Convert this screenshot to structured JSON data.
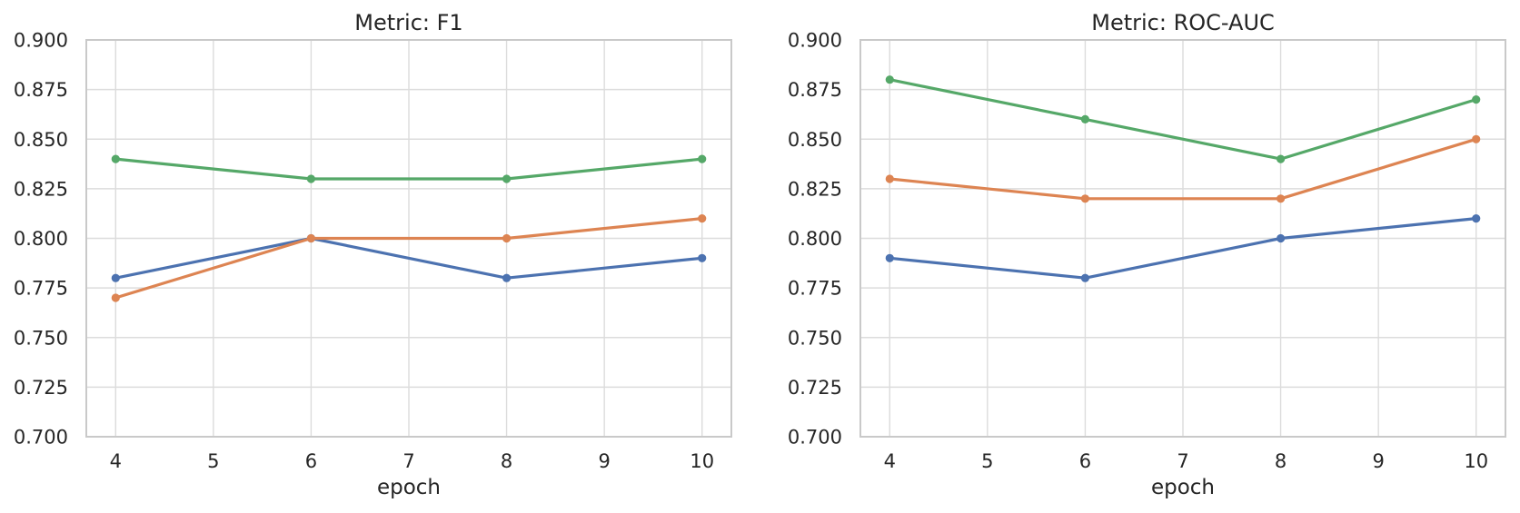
{
  "figure": {
    "background": "#ffffff",
    "text_color": "#262626",
    "grid_color": "#dcdcdc",
    "spine_color": "#c9c9c9",
    "palette": {
      "blue": "#4C72B0",
      "orange": "#DD8452",
      "green": "#55A868"
    }
  },
  "chart_data": [
    {
      "type": "line",
      "title": "Metric: F1",
      "xlabel": "epoch",
      "ylabel": "",
      "x": [
        4,
        6,
        8,
        10
      ],
      "xlim": [
        3.7,
        10.3
      ],
      "ylim": [
        0.7,
        0.9
      ],
      "grid": true,
      "legend_position": "none",
      "xticks": {
        "values": [
          4,
          5,
          6,
          7,
          8,
          9,
          10
        ],
        "labels": [
          "4",
          "5",
          "6",
          "7",
          "8",
          "9",
          "10"
        ]
      },
      "yticks": {
        "values": [
          0.7,
          0.725,
          0.75,
          0.775,
          0.8,
          0.825,
          0.85,
          0.875,
          0.9
        ],
        "labels": [
          "0.700",
          "0.725",
          "0.750",
          "0.775",
          "0.800",
          "0.825",
          "0.850",
          "0.875",
          "0.900"
        ]
      },
      "series": [
        {
          "name": "series-blue",
          "color": "#4C72B0",
          "values": [
            0.78,
            0.8,
            0.78,
            0.79
          ]
        },
        {
          "name": "series-orange",
          "color": "#DD8452",
          "values": [
            0.77,
            0.8,
            0.8,
            0.81
          ]
        },
        {
          "name": "series-green",
          "color": "#55A868",
          "values": [
            0.84,
            0.83,
            0.83,
            0.84
          ]
        }
      ]
    },
    {
      "type": "line",
      "title": "Metric: ROC-AUC",
      "xlabel": "epoch",
      "ylabel": "",
      "x": [
        4,
        6,
        8,
        10
      ],
      "xlim": [
        3.7,
        10.3
      ],
      "ylim": [
        0.7,
        0.9
      ],
      "grid": true,
      "legend_position": "none",
      "xticks": {
        "values": [
          4,
          5,
          6,
          7,
          8,
          9,
          10
        ],
        "labels": [
          "4",
          "5",
          "6",
          "7",
          "8",
          "9",
          "10"
        ]
      },
      "yticks": {
        "values": [
          0.7,
          0.725,
          0.75,
          0.775,
          0.8,
          0.825,
          0.85,
          0.875,
          0.9
        ],
        "labels": [
          "0.700",
          "0.725",
          "0.750",
          "0.775",
          "0.800",
          "0.825",
          "0.850",
          "0.875",
          "0.900"
        ]
      },
      "series": [
        {
          "name": "series-blue",
          "color": "#4C72B0",
          "values": [
            0.79,
            0.78,
            0.8,
            0.81
          ]
        },
        {
          "name": "series-orange",
          "color": "#DD8452",
          "values": [
            0.83,
            0.82,
            0.82,
            0.85
          ]
        },
        {
          "name": "series-green",
          "color": "#55A868",
          "values": [
            0.88,
            0.86,
            0.84,
            0.87
          ]
        }
      ]
    }
  ]
}
